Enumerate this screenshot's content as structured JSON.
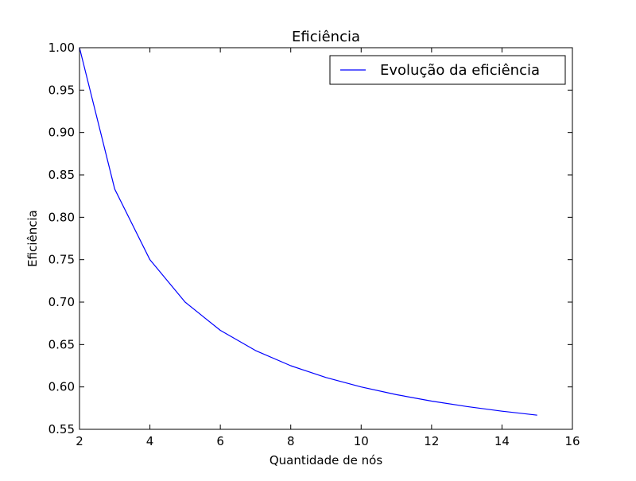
{
  "chart_data": {
    "type": "line",
    "title": "Eficiência",
    "xlabel": "Quantidade de nós",
    "ylabel": "Eficiência",
    "xlim": [
      2,
      16
    ],
    "ylim": [
      0.55,
      1.0
    ],
    "xticks": [
      "2",
      "4",
      "6",
      "8",
      "10",
      "12",
      "14",
      "16"
    ],
    "yticks": [
      "0.55",
      "0.60",
      "0.65",
      "0.70",
      "0.75",
      "0.80",
      "0.85",
      "0.90",
      "0.95",
      "1.00"
    ],
    "grid": false,
    "legend_position": "top-right",
    "series": [
      {
        "name": "Evolução da eficiência",
        "color": "#0000ff",
        "x": [
          2,
          3,
          4,
          5,
          6,
          7,
          8,
          9,
          10,
          11,
          12,
          13,
          14,
          15
        ],
        "y": [
          1.0,
          0.8333,
          0.75,
          0.7,
          0.6667,
          0.6429,
          0.625,
          0.6111,
          0.6,
          0.5909,
          0.5833,
          0.5769,
          0.5714,
          0.5667
        ]
      }
    ]
  }
}
